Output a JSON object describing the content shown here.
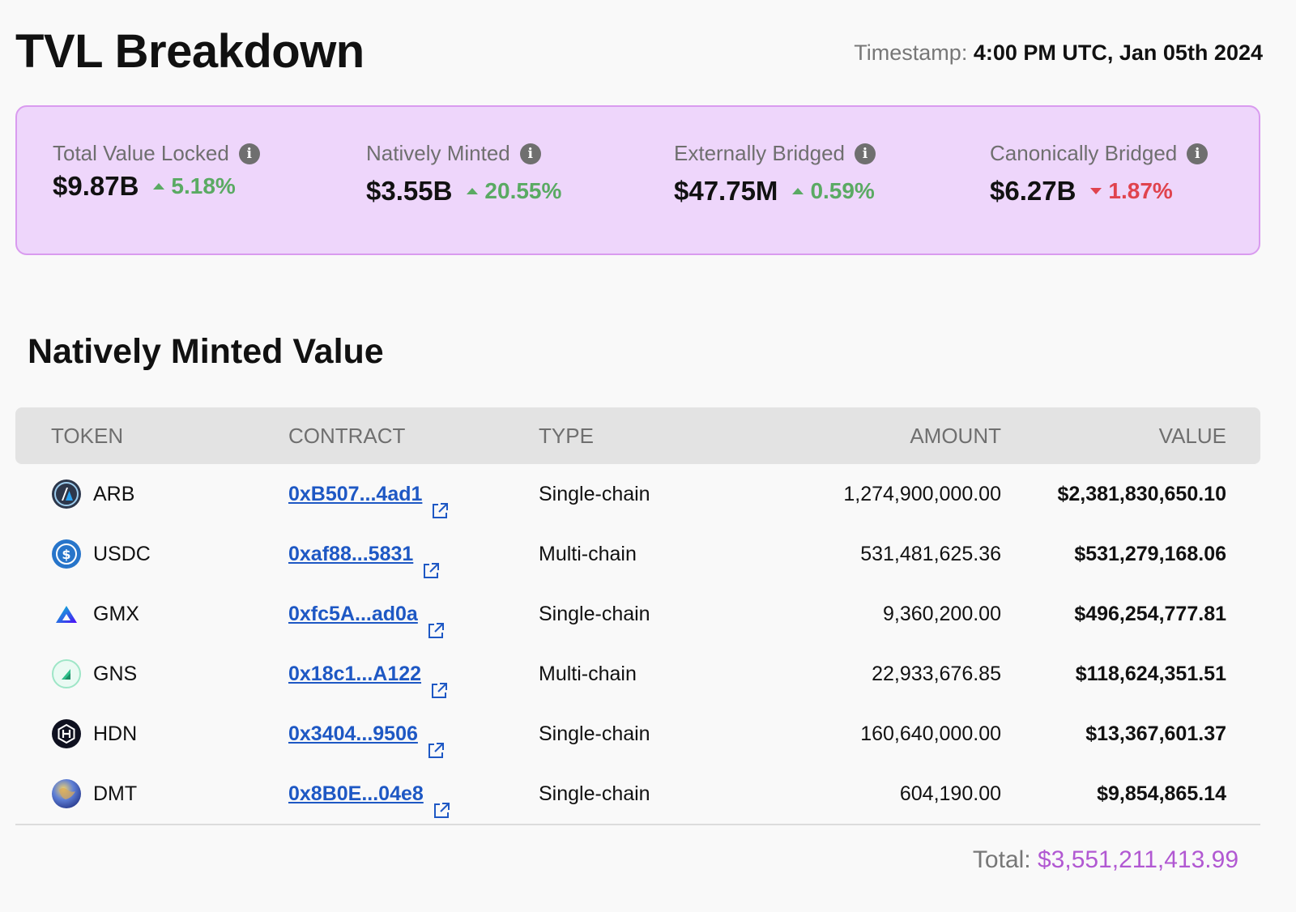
{
  "header": {
    "title": "TVL Breakdown",
    "timestamp_label": "Timestamp:",
    "timestamp_value": "4:00 PM UTC, Jan 05th 2024"
  },
  "metrics": [
    {
      "label": "Total Value Locked",
      "value": "$9.87B",
      "change": "5.18%",
      "direction": "up"
    },
    {
      "label": "Natively Minted",
      "value": "$3.55B",
      "change": "20.55%",
      "direction": "up"
    },
    {
      "label": "Externally Bridged",
      "value": "$47.75M",
      "change": "0.59%",
      "direction": "up"
    },
    {
      "label": "Canonically Bridged",
      "value": "$6.27B",
      "change": "1.87%",
      "direction": "down"
    }
  ],
  "section": {
    "title": "Natively Minted Value"
  },
  "table": {
    "headers": {
      "token": "TOKEN",
      "contract": "CONTRACT",
      "type": "TYPE",
      "amount": "AMOUNT",
      "value": "VALUE"
    },
    "rows": [
      {
        "token": "ARB",
        "icon": "arbitrum-logo-icon",
        "contract": "0xB507...4ad1",
        "type": "Single-chain",
        "amount": "1,274,900,000.00",
        "value": "$2,381,830,650.10"
      },
      {
        "token": "USDC",
        "icon": "usdc-logo-icon",
        "contract": "0xaf88...5831",
        "type": "Multi-chain",
        "amount": "531,481,625.36",
        "value": "$531,279,168.06"
      },
      {
        "token": "GMX",
        "icon": "gmx-logo-icon",
        "contract": "0xfc5A...ad0a",
        "type": "Single-chain",
        "amount": "9,360,200.00",
        "value": "$496,254,777.81"
      },
      {
        "token": "GNS",
        "icon": "gns-logo-icon",
        "contract": "0x18c1...A122",
        "type": "Multi-chain",
        "amount": "22,933,676.85",
        "value": "$118,624,351.51"
      },
      {
        "token": "HDN",
        "icon": "hdn-logo-icon",
        "contract": "0x3404...9506",
        "type": "Single-chain",
        "amount": "160,640,000.00",
        "value": "$13,367,601.37"
      },
      {
        "token": "DMT",
        "icon": "dmt-logo-icon",
        "contract": "0x8B0E...04e8",
        "type": "Single-chain",
        "amount": "604,190.00",
        "value": "$9,854,865.14"
      }
    ]
  },
  "total": {
    "label": "Total:",
    "value": "$3,551,211,413.99"
  },
  "colors": {
    "card_bg": "#eed6fb",
    "card_border": "#d99bef",
    "up": "#5aaa63",
    "down": "#e0434e",
    "link": "#1e58c4",
    "total": "#b158d2"
  }
}
